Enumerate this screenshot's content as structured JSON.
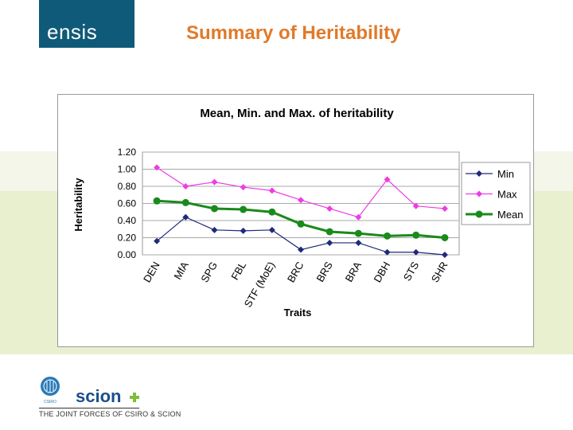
{
  "brand": {
    "logo_text": "ensis",
    "csiro_text": "CSIRO",
    "scion_text": "scion"
  },
  "slide": {
    "title": "Summary of Heritability"
  },
  "footer": {
    "text": "THE JOINT FORCES OF CSIRO & SCION"
  },
  "colors": {
    "min": "#1f2a7a",
    "max": "#ee3ce6",
    "mean": "#1a8a1a",
    "title": "#e07a2a",
    "logo_bg": "#0f5a78"
  },
  "chart_data": {
    "type": "line",
    "title": "Mean, Min. and Max. of heritability",
    "xlabel": "Traits",
    "ylabel": "Heritability",
    "ylim": [
      0,
      1.2
    ],
    "yticks": [
      "0.00",
      "0.20",
      "0.40",
      "0.60",
      "0.80",
      "1.00",
      "1.20"
    ],
    "grid": true,
    "legend": "right",
    "categories": [
      "DEN",
      "MfA",
      "SPG",
      "FBL",
      "STF (MoE)",
      "BRC",
      "BRS",
      "BRA",
      "DBH",
      "STS",
      "SHR"
    ],
    "series": [
      {
        "name": "Min",
        "color": "#1f2a7a",
        "marker": "diamond",
        "values": [
          0.16,
          0.44,
          0.29,
          0.28,
          0.29,
          0.06,
          0.14,
          0.14,
          0.03,
          0.03,
          0.0
        ]
      },
      {
        "name": "Max",
        "color": "#ee3ce6",
        "marker": "diamond",
        "values": [
          1.02,
          0.8,
          0.85,
          0.79,
          0.75,
          0.64,
          0.54,
          0.44,
          0.88,
          0.57,
          0.54
        ]
      },
      {
        "name": "Mean",
        "color": "#1a8a1a",
        "marker": "circle",
        "values": [
          0.63,
          0.61,
          0.54,
          0.53,
          0.5,
          0.36,
          0.27,
          0.25,
          0.22,
          0.23,
          0.2
        ]
      }
    ]
  }
}
